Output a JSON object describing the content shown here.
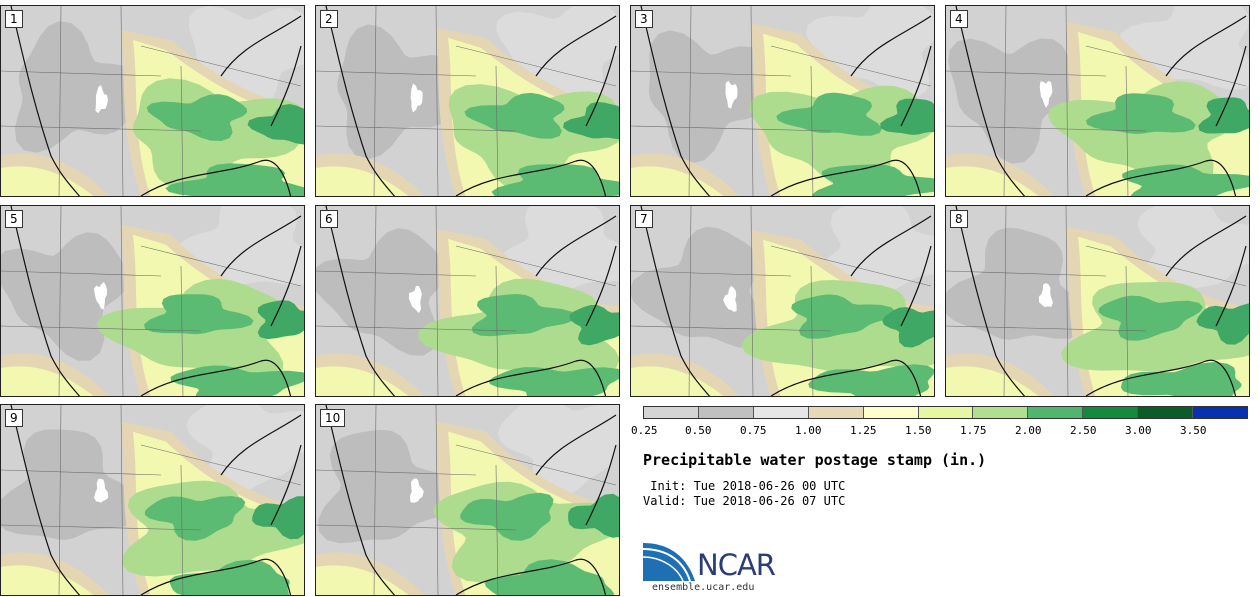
{
  "panels": [
    {
      "label": "1"
    },
    {
      "label": "2"
    },
    {
      "label": "3"
    },
    {
      "label": "4"
    },
    {
      "label": "5"
    },
    {
      "label": "6"
    },
    {
      "label": "7"
    },
    {
      "label": "8"
    },
    {
      "label": "9"
    },
    {
      "label": "10"
    }
  ],
  "colorbar": {
    "colors": [
      "#d4d4d4",
      "#c0c0c0",
      "#e6e6e6",
      "#e6d9b8",
      "#ffffcc",
      "#e6f7a1",
      "#b0df91",
      "#4fb76b",
      "#138a3c",
      "#0b5c28",
      "#0830b0"
    ],
    "ticks": [
      "0.25",
      "0.50",
      "0.75",
      "1.00",
      "1.25",
      "1.50",
      "1.75",
      "2.00",
      "2.50",
      "3.00",
      "3.50"
    ]
  },
  "title": "Precipitable water postage stamp (in.)",
  "init_line": " Init: Tue 2018-06-26 00 UTC",
  "valid_line": "Valid: Tue 2018-06-26 07 UTC",
  "logo": {
    "text": "NCAR",
    "color": "#2a3d78"
  },
  "site": "ensemble.ucar.edu"
}
